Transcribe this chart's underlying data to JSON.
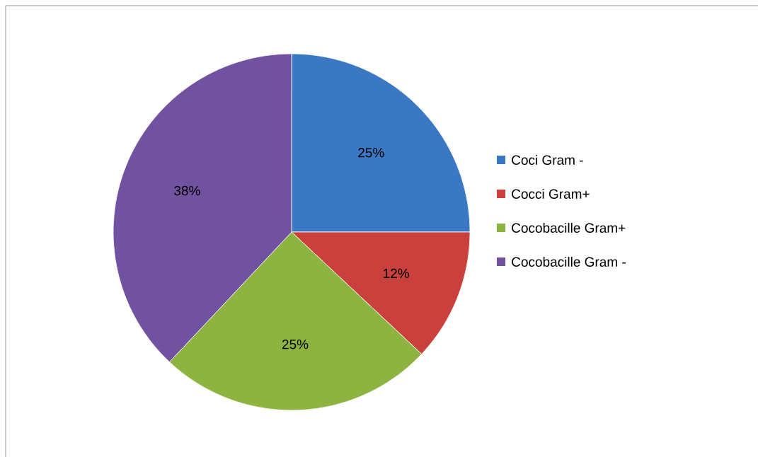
{
  "chart_data": {
    "type": "pie",
    "categories": [
      "Coci Gram -",
      "Cocci Gram+",
      "Cocobacille Gram+",
      "Cocobacille Gram -"
    ],
    "values": [
      25,
      12,
      25,
      38
    ],
    "value_labels": [
      "25%",
      "12%",
      "25%",
      "38%"
    ],
    "colors": [
      "#3b78c4",
      "#c9403c",
      "#8db441",
      "#7052a0"
    ],
    "legend": "right"
  }
}
